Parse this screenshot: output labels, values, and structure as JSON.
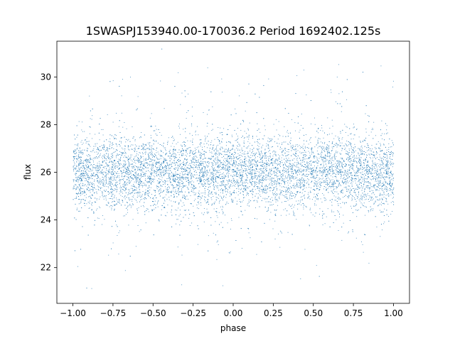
{
  "chart_data": {
    "type": "scatter",
    "title": "1SWASPJ153940.00-170036.2 Period 1692402.125s",
    "xlabel": "phase",
    "ylabel": "flux",
    "xlim": [
      -1.1,
      1.1
    ],
    "ylim": [
      20.5,
      31.5
    ],
    "xticks": [
      -1.0,
      -0.75,
      -0.5,
      -0.25,
      0.0,
      0.25,
      0.5,
      0.75,
      1.0
    ],
    "xtick_labels": [
      "−1.00",
      "−0.75",
      "−0.50",
      "−0.25",
      "0.00",
      "0.25",
      "0.50",
      "0.75",
      "1.00"
    ],
    "yticks": [
      22,
      24,
      26,
      28,
      30
    ],
    "ytick_labels": [
      "22",
      "24",
      "26",
      "28",
      "30"
    ],
    "grid": false,
    "marker_color": "#1f77b4",
    "series": [
      {
        "points_approx": "dense band of points spanning phase -1.0 to 1.0, mostly within flux 24.5 to 27.5, sparse outliers from 21 to 31",
        "x_range": [
          -1.0,
          1.0
        ],
        "y_core": [
          24.5,
          27.5
        ],
        "y_extent": [
          21.0,
          31.2
        ],
        "y_center": 26.0
      }
    ]
  }
}
